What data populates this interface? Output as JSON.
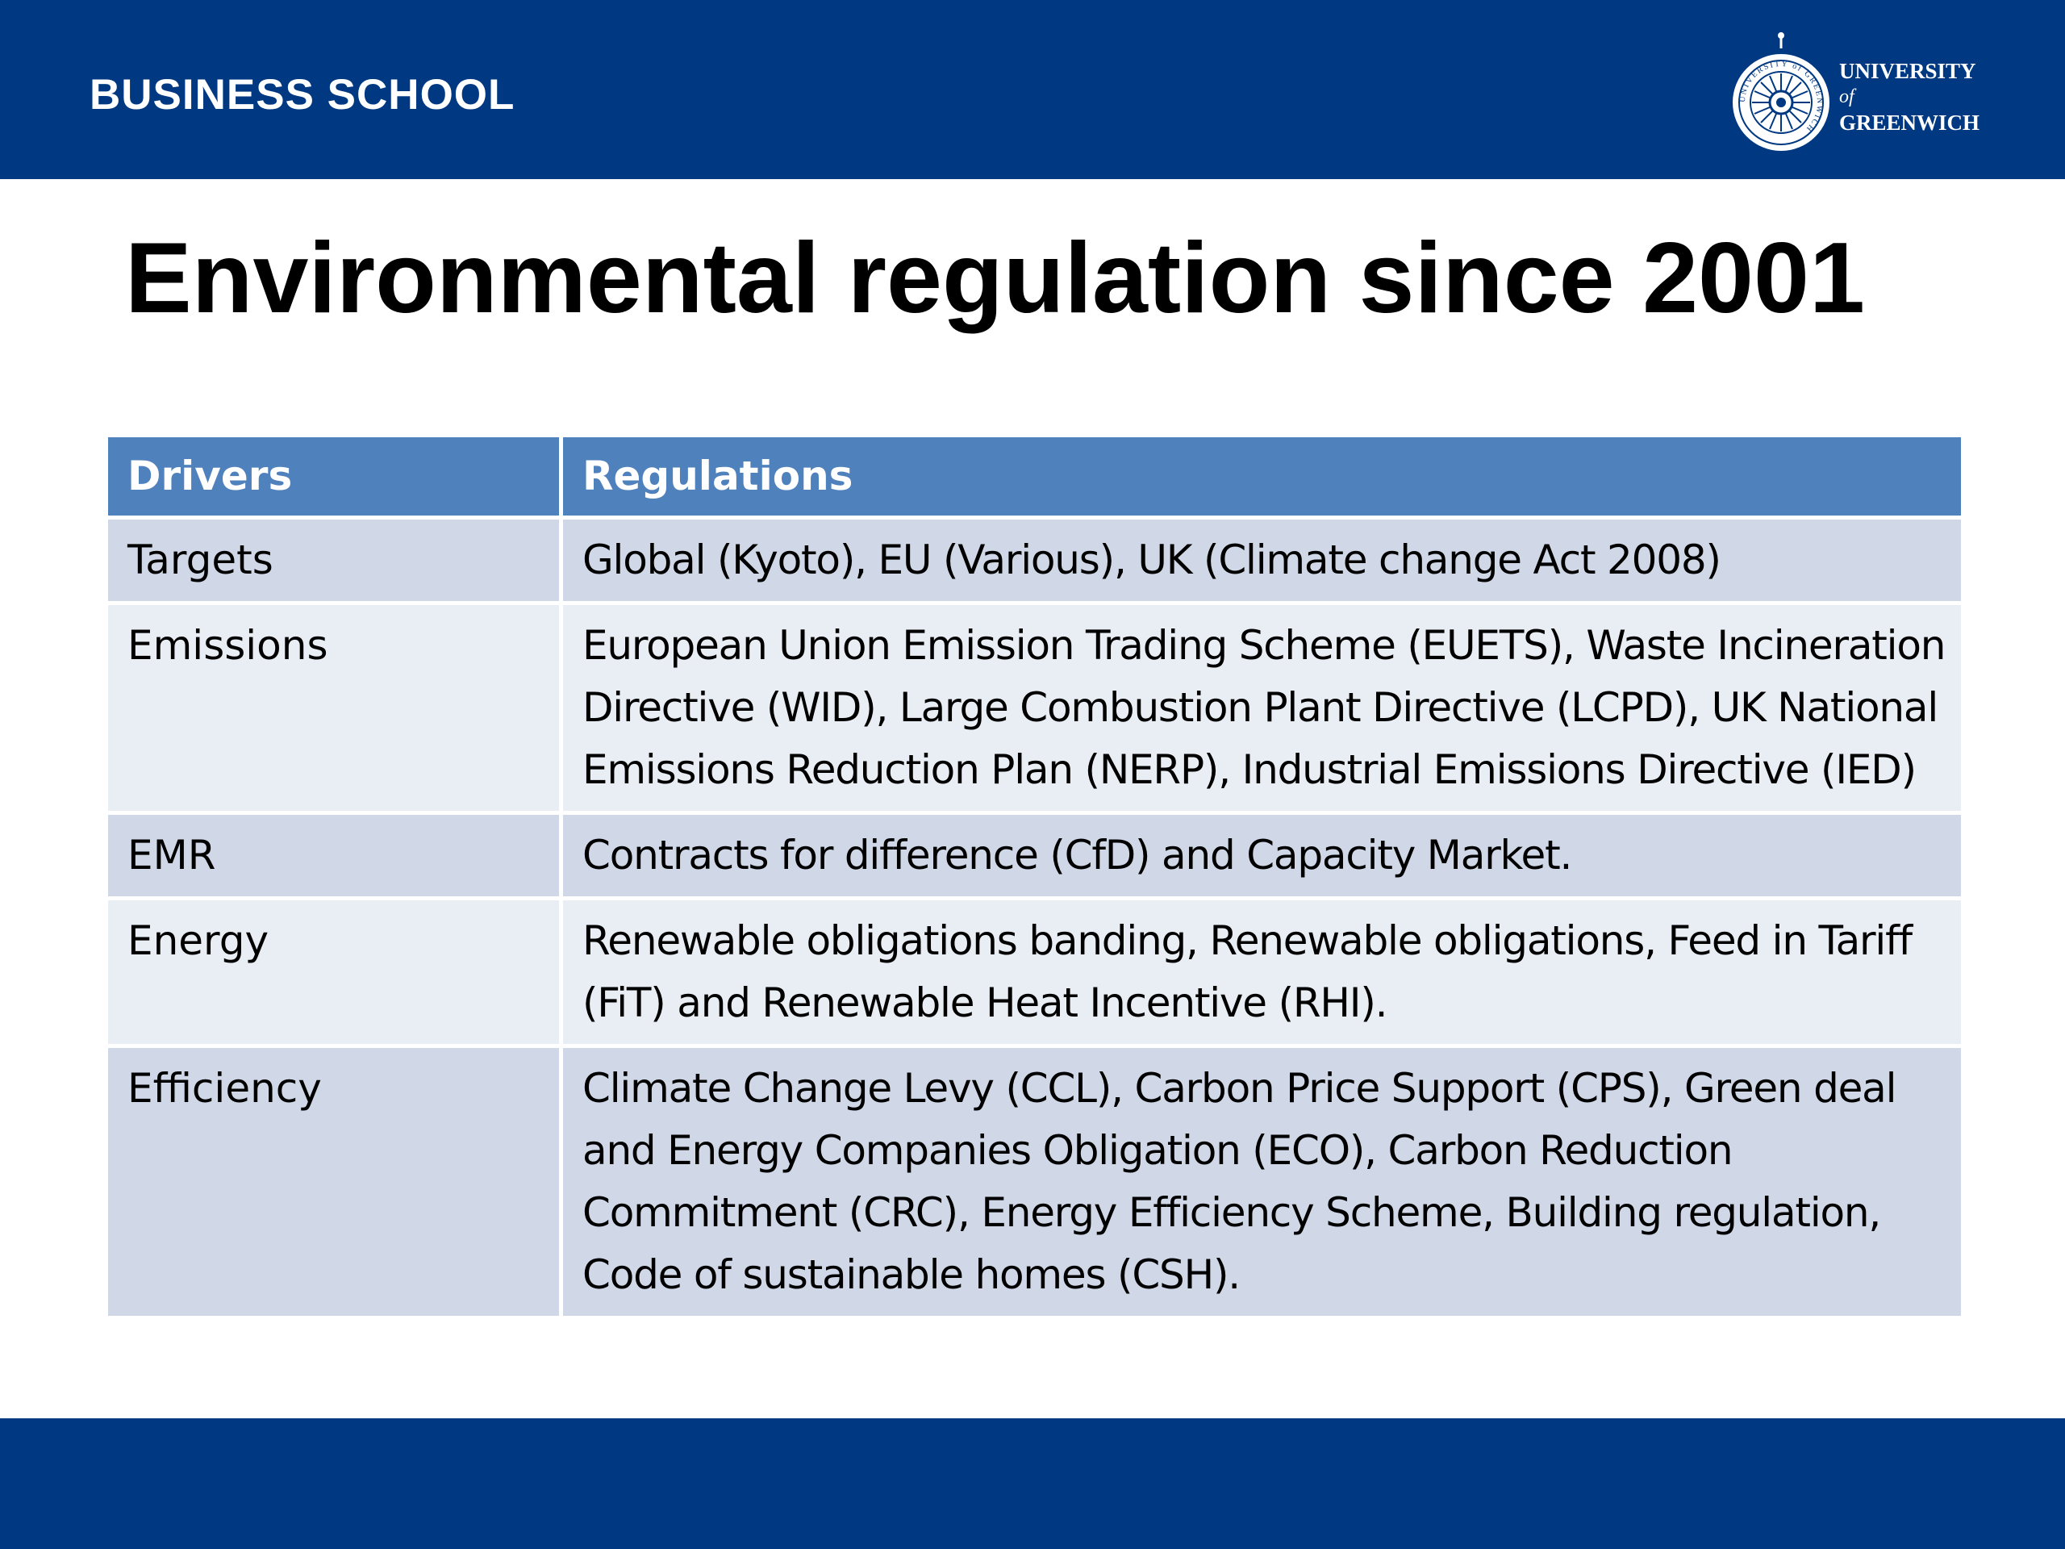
{
  "header": {
    "school_name": "BUSINESS SCHOOL",
    "logo": {
      "line1": "UNIVERSITY",
      "line2": "of",
      "line3": "GREENWICH",
      "seal_text": "UNIVERSITY of GREENWICH",
      "icon": "compass-rose-seal-icon"
    }
  },
  "slide": {
    "title": "Environmental regulation since 2001"
  },
  "table": {
    "headers": [
      "Drivers",
      "Regulations"
    ],
    "rows": [
      {
        "driver": "Targets",
        "regulations": "Global (Kyoto), EU (Various), UK (Climate change Act 2008)"
      },
      {
        "driver": "Emissions",
        "regulations": "European Union Emission Trading Scheme (EUETS), Waste Incineration Directive (WID), Large Combustion Plant Directive (LCPD), UK National Emissions Reduction Plan (NERP), Industrial Emissions Directive (IED)"
      },
      {
        "driver": "EMR",
        "regulations": "Contracts for difference (CfD) and Capacity Market."
      },
      {
        "driver": "Energy",
        "regulations": "Renewable obligations banding, Renewable obligations, Feed in Tariff (FiT) and Renewable Heat Incentive (RHI)."
      },
      {
        "driver": "Efficiency",
        "regulations": "Climate Change Levy (CCL), Carbon Price Support (CPS), Green deal and Energy Companies Obligation (ECO), Carbon Reduction Commitment (CRC), Energy Efficiency Scheme, Building regulation, Code of sustainable homes (CSH)."
      }
    ]
  },
  "colors": {
    "brand_navy": "#003882",
    "table_header": "#4f81bd",
    "row_band_dark": "#d0d8e8",
    "row_band_light": "#e9edf4"
  }
}
